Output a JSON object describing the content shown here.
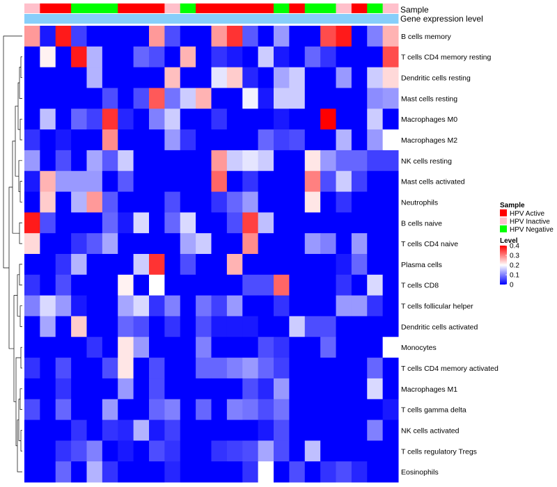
{
  "chart_data": {
    "type": "heatmap",
    "title": "",
    "column_count": 24,
    "annotation_tracks": {
      "sample_label": "Sample",
      "gene_label": "Gene expression level",
      "sample_classes": [
        "HPV Inactive",
        "HPV Active",
        "HPV Active",
        "HPV Negative",
        "HPV Negative",
        "HPV Negative",
        "HPV Active",
        "HPV Active",
        "HPV Active",
        "HPV Inactive",
        "HPV Negative",
        "HPV Active",
        "HPV Active",
        "HPV Active",
        "HPV Active",
        "HPV Active",
        "HPV Negative",
        "HPV Active",
        "HPV Negative",
        "HPV Negative",
        "HPV Inactive",
        "HPV Active",
        "HPV Negative",
        "HPV Inactive"
      ]
    },
    "legend": {
      "sample_title": "Sample",
      "sample_items": [
        {
          "label": "HPV Active",
          "color": "#ff0000"
        },
        {
          "label": "HPV Inactive",
          "color": "#ffc0cb"
        },
        {
          "label": "HPV Negative",
          "color": "#00ff00"
        }
      ],
      "level_title": "Level",
      "level_ticks": [
        {
          "label": "0.4",
          "value": 0.4
        },
        {
          "label": "0.3",
          "value": 0.3
        },
        {
          "label": "0.2",
          "value": 0.2
        },
        {
          "label": "0.1",
          "value": 0.1
        },
        {
          "label": "0",
          "value": 0.0
        }
      ]
    },
    "color_scale": {
      "low": "#0000ff",
      "mid": "#ffffff",
      "high": "#ff0000",
      "min": 0,
      "mid_value": 0.2,
      "max": 0.4
    },
    "rows": [
      "B cells memory",
      "T cells CD4 memory resting",
      "Dendritic cells resting",
      "Mast cells resting",
      "Macrophages M0",
      "Macrophages M2",
      "NK cells resting",
      "Mast cells activated",
      "Neutrophils",
      "B cells naive",
      "T cells CD4 naive",
      "Plasma cells",
      "T cells CD8",
      "T cells follicular helper",
      "Dendritic cells activated",
      "Monocytes",
      "T cells CD4 memory activated",
      "Macrophages M1",
      "T cells gamma delta",
      "NK cells activated",
      "T cells regulatory  Tregs",
      "Eosinophils"
    ],
    "values": [
      [
        0.28,
        0.02,
        0.38,
        0.05,
        0.0,
        0.0,
        0.0,
        0.0,
        0.28,
        0.06,
        0.0,
        0.0,
        0.28,
        0.36,
        0.07,
        0.0,
        0.12,
        0.0,
        0.0,
        0.34,
        0.38,
        0.0,
        0.1,
        0.26
      ],
      [
        0.0,
        0.21,
        0.0,
        0.38,
        0.14,
        0.0,
        0.0,
        0.08,
        0.06,
        0.0,
        0.26,
        0.0,
        0.04,
        0.02,
        0.0,
        0.16,
        0.02,
        0.0,
        0.08,
        0.04,
        0.0,
        0.0,
        0.0,
        0.34
      ],
      [
        0.0,
        0.0,
        0.0,
        0.0,
        0.14,
        0.0,
        0.0,
        0.0,
        0.0,
        0.25,
        0.0,
        0.0,
        0.18,
        0.24,
        0.03,
        0.0,
        0.13,
        0.16,
        0.0,
        0.0,
        0.12,
        0.0,
        0.16,
        0.23
      ],
      [
        0.0,
        0.0,
        0.0,
        0.0,
        0.0,
        0.06,
        0.0,
        0.06,
        0.33,
        0.09,
        0.16,
        0.26,
        0.0,
        0.0,
        0.19,
        0.02,
        0.16,
        0.16,
        0.0,
        0.0,
        0.0,
        0.0,
        0.11,
        0.12
      ],
      [
        0.0,
        0.15,
        0.0,
        0.08,
        0.05,
        0.36,
        0.03,
        0.0,
        0.1,
        0.16,
        0.0,
        0.0,
        0.04,
        0.0,
        0.0,
        0.0,
        0.02,
        0.0,
        0.0,
        0.4,
        0.0,
        0.0,
        0.16,
        0.0
      ],
      [
        0.04,
        0.0,
        0.02,
        0.0,
        0.0,
        0.29,
        0.0,
        0.0,
        0.0,
        0.12,
        0.04,
        0.0,
        0.0,
        0.0,
        0.0,
        0.08,
        0.05,
        0.06,
        0.0,
        0.0,
        0.14,
        0.0,
        0.12,
        0.2
      ],
      [
        0.12,
        0.0,
        0.06,
        0.0,
        0.13,
        0.07,
        0.16,
        0.0,
        0.0,
        0.0,
        0.0,
        0.0,
        0.28,
        0.16,
        0.18,
        0.16,
        0.0,
        0.0,
        0.22,
        0.12,
        0.08,
        0.08,
        0.05,
        0.05
      ],
      [
        0.02,
        0.26,
        0.12,
        0.12,
        0.12,
        0.0,
        0.07,
        0.0,
        0.0,
        0.0,
        0.0,
        0.0,
        0.32,
        0.0,
        0.04,
        0.0,
        0.0,
        0.0,
        0.3,
        0.06,
        0.16,
        0.05,
        0.0,
        0.0
      ],
      [
        0.0,
        0.24,
        0.0,
        0.14,
        0.28,
        0.07,
        0.0,
        0.0,
        0.0,
        0.06,
        0.0,
        0.0,
        0.04,
        0.08,
        0.12,
        0.0,
        0.0,
        0.0,
        0.22,
        0.0,
        0.04,
        0.0,
        0.0,
        0.0
      ],
      [
        0.38,
        0.06,
        0.0,
        0.0,
        0.0,
        0.08,
        0.02,
        0.17,
        0.0,
        0.08,
        0.17,
        0.0,
        0.0,
        0.06,
        0.35,
        0.15,
        0.0,
        0.0,
        0.0,
        0.0,
        0.0,
        0.0,
        0.0,
        0.0
      ],
      [
        0.23,
        0.0,
        0.0,
        0.04,
        0.07,
        0.13,
        0.0,
        0.0,
        0.0,
        0.0,
        0.13,
        0.16,
        0.0,
        0.0,
        0.29,
        0.0,
        0.0,
        0.0,
        0.12,
        0.1,
        0.0,
        0.12,
        0.0,
        0.0
      ],
      [
        0.0,
        0.0,
        0.04,
        0.14,
        0.0,
        0.0,
        0.0,
        0.16,
        0.36,
        0.0,
        0.06,
        0.0,
        0.0,
        0.26,
        0.0,
        0.0,
        0.0,
        0.0,
        0.0,
        0.0,
        0.02,
        0.08,
        0.0,
        0.0
      ],
      [
        0.04,
        0.0,
        0.06,
        0.0,
        0.0,
        0.0,
        0.21,
        0.0,
        0.2,
        0.0,
        0.0,
        0.0,
        0.0,
        0.0,
        0.06,
        0.06,
        0.32,
        0.0,
        0.0,
        0.0,
        0.04,
        0.0,
        0.17,
        0.0
      ],
      [
        0.1,
        0.17,
        0.12,
        0.02,
        0.0,
        0.0,
        0.13,
        0.17,
        0.04,
        0.1,
        0.0,
        0.09,
        0.05,
        0.12,
        0.0,
        0.0,
        0.04,
        0.0,
        0.0,
        0.0,
        0.12,
        0.12,
        0.04,
        0.0
      ],
      [
        0.0,
        0.13,
        0.0,
        0.24,
        0.0,
        0.0,
        0.08,
        0.06,
        0.0,
        0.04,
        0.0,
        0.06,
        0.02,
        0.02,
        0.02,
        0.0,
        0.0,
        0.16,
        0.06,
        0.06,
        0.0,
        0.0,
        0.0,
        0.0
      ],
      [
        0.0,
        0.0,
        0.0,
        0.0,
        0.04,
        0.0,
        0.22,
        0.12,
        0.0,
        0.0,
        0.0,
        0.1,
        0.0,
        0.0,
        0.0,
        0.06,
        0.04,
        0.0,
        0.0,
        0.08,
        0.0,
        0.0,
        0.0,
        0.2
      ],
      [
        0.04,
        0.0,
        0.06,
        0.0,
        0.0,
        0.06,
        0.22,
        0.0,
        0.06,
        0.0,
        0.0,
        0.08,
        0.08,
        0.1,
        0.12,
        0.08,
        0.05,
        0.0,
        0.0,
        0.0,
        0.0,
        0.0,
        0.08,
        0.0
      ],
      [
        0.0,
        0.0,
        0.04,
        0.0,
        0.0,
        0.0,
        0.12,
        0.0,
        0.06,
        0.0,
        0.0,
        0.0,
        0.0,
        0.0,
        0.06,
        0.03,
        0.12,
        0.0,
        0.0,
        0.0,
        0.0,
        0.0,
        0.17,
        0.0
      ],
      [
        0.06,
        0.0,
        0.08,
        0.0,
        0.0,
        0.12,
        0.0,
        0.0,
        0.08,
        0.1,
        0.0,
        0.08,
        0.0,
        0.1,
        0.09,
        0.06,
        0.09,
        0.0,
        0.0,
        0.0,
        0.0,
        0.0,
        0.0,
        0.02
      ],
      [
        0.0,
        0.0,
        0.0,
        0.04,
        0.0,
        0.04,
        0.03,
        0.14,
        0.02,
        0.05,
        0.0,
        0.0,
        0.0,
        0.0,
        0.0,
        0.02,
        0.06,
        0.0,
        0.0,
        0.0,
        0.0,
        0.0,
        0.1,
        0.0
      ],
      [
        0.0,
        0.0,
        0.04,
        0.06,
        0.1,
        0.0,
        0.02,
        0.0,
        0.06,
        0.04,
        0.0,
        0.0,
        0.04,
        0.05,
        0.06,
        0.13,
        0.06,
        0.0,
        0.15,
        0.0,
        0.0,
        0.0,
        0.0,
        0.0
      ],
      [
        0.0,
        0.0,
        0.08,
        0.0,
        0.14,
        0.04,
        0.0,
        0.0,
        0.0,
        0.03,
        0.0,
        0.0,
        0.0,
        0.0,
        0.04,
        0.2,
        0.0,
        0.06,
        0.0,
        0.04,
        0.06,
        0.03,
        0.0,
        0.0
      ]
    ]
  }
}
